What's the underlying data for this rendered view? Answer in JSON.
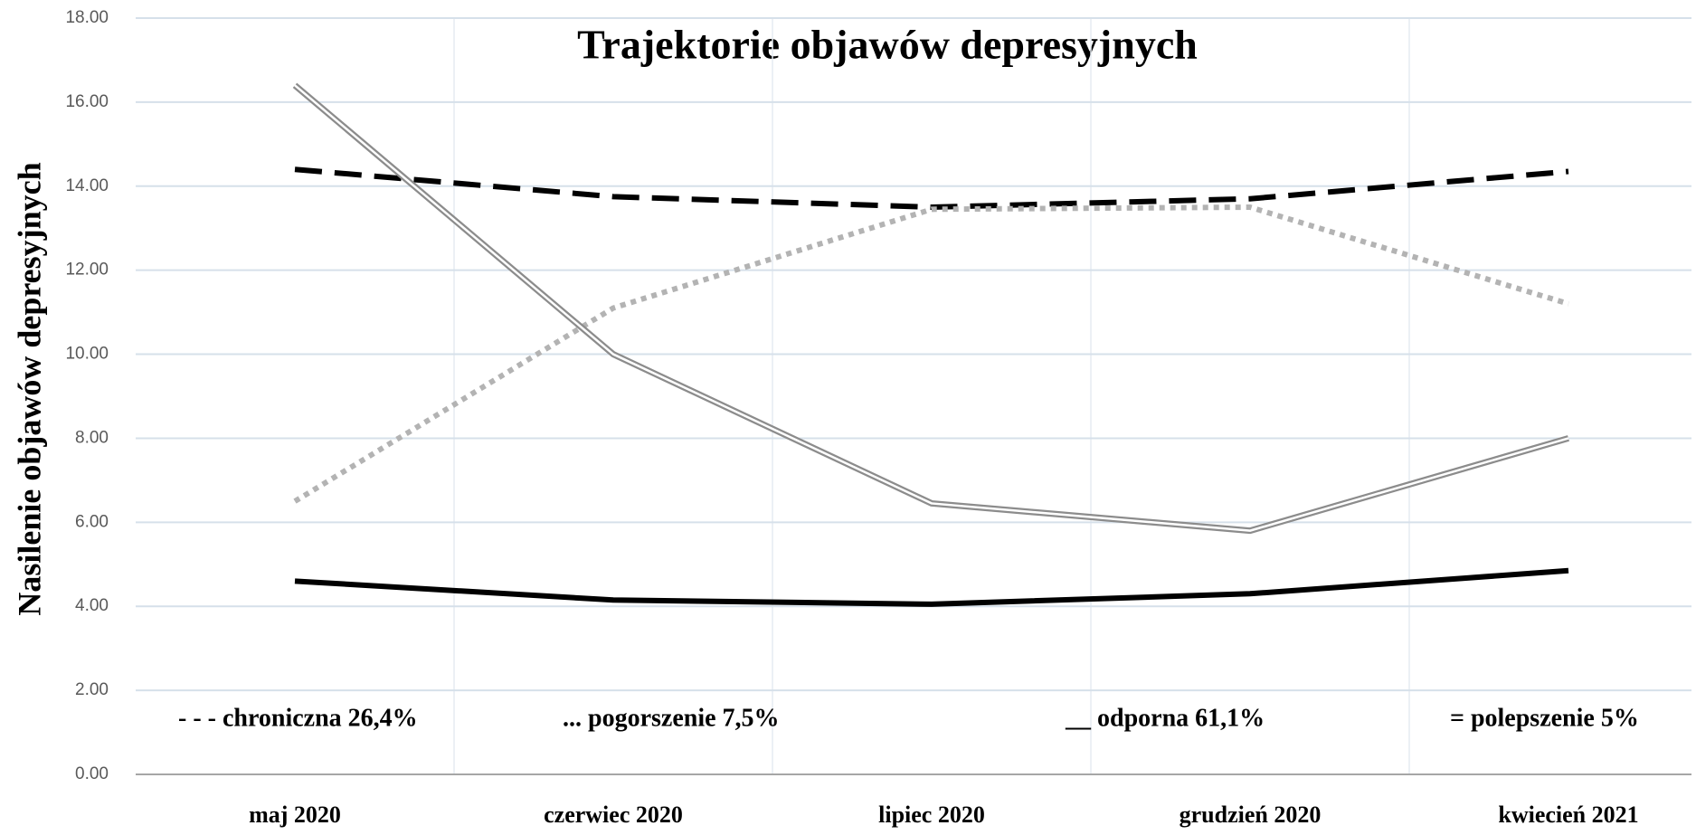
{
  "chart_data": {
    "type": "line",
    "title": "Trajektorie objawów depresyjnych",
    "y_label": "Nasilenie objawów depresyjnych",
    "categories": [
      "maj 2020",
      "czerwiec 2020",
      "lipiec 2020",
      "grudzień 2020",
      "kwiecień 2021"
    ],
    "series": [
      {
        "name": "- - - chroniczna 26,4%",
        "color": "#000000",
        "style": "dashed",
        "values": [
          14.4,
          13.75,
          13.5,
          13.7,
          14.35
        ]
      },
      {
        "name": "... pogorszenie 7,5%",
        "color": "#b3b3b3",
        "style": "dotted",
        "values": [
          6.5,
          11.1,
          13.45,
          13.5,
          11.2
        ]
      },
      {
        "name": "__ odporna 61,1%",
        "color": "#000000",
        "style": "solid",
        "values": [
          4.6,
          4.15,
          4.05,
          4.3,
          4.85
        ]
      },
      {
        "name": "= polepszenie 5%",
        "color": "#8c8c8c",
        "style": "double",
        "values": [
          16.4,
          10.0,
          6.45,
          5.8,
          8.0
        ]
      }
    ],
    "ylim": [
      0,
      18
    ],
    "yticks": [
      {
        "value": 0,
        "label": "0.00"
      },
      {
        "value": 2,
        "label": "2.00"
      },
      {
        "value": 4,
        "label": "4.00"
      },
      {
        "value": 6,
        "label": "6.00"
      },
      {
        "value": 8,
        "label": "8.00"
      },
      {
        "value": 10,
        "label": "10.00"
      },
      {
        "value": 12,
        "label": "12.00"
      },
      {
        "value": 14,
        "label": "14.00"
      },
      {
        "value": 16,
        "label": "16.00"
      },
      {
        "value": 18,
        "label": "18.00"
      }
    ],
    "grid": true
  }
}
